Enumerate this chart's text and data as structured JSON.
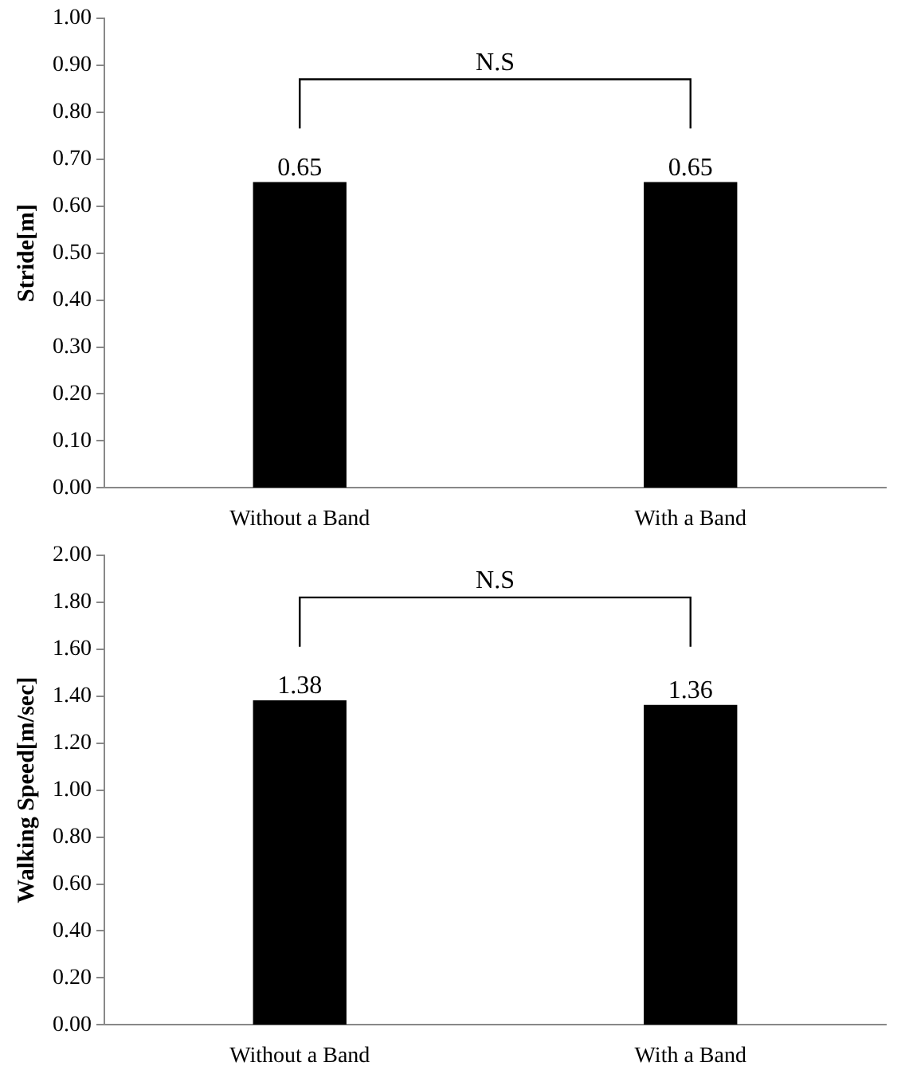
{
  "chart_data": [
    {
      "type": "bar",
      "ylabel": "Stride[m]",
      "categories": [
        "Without a Band",
        "With a Band"
      ],
      "values": [
        0.65,
        0.65
      ],
      "color": "#000000",
      "ylim": [
        0,
        1
      ],
      "yticks": [
        {
          "value": 0,
          "label": "0.00"
        },
        {
          "value": 0.1,
          "label": "0.10"
        },
        {
          "value": 0.2,
          "label": "0.20"
        },
        {
          "value": 0.3,
          "label": "0.30"
        },
        {
          "value": 0.4,
          "label": "0.40"
        },
        {
          "value": 0.5,
          "label": "0.50"
        },
        {
          "value": 0.6,
          "label": "0.60"
        },
        {
          "value": 0.7,
          "label": "0.70"
        },
        {
          "value": 0.8,
          "label": "0.80"
        },
        {
          "value": 0.9,
          "label": "0.90"
        },
        {
          "value": 1,
          "label": "1.00"
        }
      ],
      "value_labels": [
        "0.65",
        "0.65"
      ],
      "annotations": [
        "N.S"
      ],
      "grid": false,
      "legend": false
    },
    {
      "type": "bar",
      "ylabel": "Walking Speed[m/sec]",
      "categories": [
        "Without a Band",
        "With a Band"
      ],
      "values": [
        1.38,
        1.36
      ],
      "color": "#000000",
      "ylim": [
        0,
        2
      ],
      "yticks": [
        {
          "value": 0,
          "label": "0.00"
        },
        {
          "value": 0.2,
          "label": "0.20"
        },
        {
          "value": 0.4,
          "label": "0.40"
        },
        {
          "value": 0.6,
          "label": "0.60"
        },
        {
          "value": 0.8,
          "label": "0.80"
        },
        {
          "value": 1,
          "label": "1.00"
        },
        {
          "value": 1.2,
          "label": "1.20"
        },
        {
          "value": 1.4,
          "label": "1.40"
        },
        {
          "value": 1.6,
          "label": "1.60"
        },
        {
          "value": 1.8,
          "label": "1.80"
        },
        {
          "value": 2,
          "label": "2.00"
        }
      ],
      "data_labels": true,
      "annotations": [
        "N.S"
      ],
      "grid": false,
      "legend": false
    }
  ]
}
